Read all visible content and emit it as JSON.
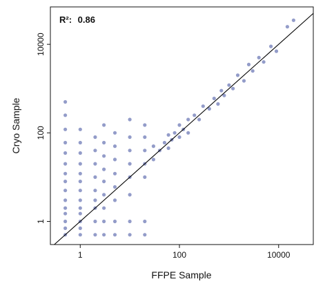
{
  "chart_data": {
    "type": "scatter",
    "title": "",
    "xlabel": "FFPE Sample",
    "ylabel": "Cryo Sample",
    "x_scale": "log10",
    "y_scale": "log10",
    "xlim": [
      0.25,
      50000
    ],
    "ylim": [
      0.3,
      70000
    ],
    "x_ticks": [
      1,
      100,
      10000
    ],
    "x_tick_labels": [
      "1",
      "100",
      "10000"
    ],
    "y_ticks": [
      1,
      100,
      10000
    ],
    "y_tick_labels": [
      "1",
      "100",
      "10000"
    ],
    "grid": false,
    "legend": "none",
    "annotation": {
      "label": "R²:",
      "value": "0.86"
    },
    "fit_line": {
      "slope_loglog": 1.0,
      "intercept_log10": 0.0
    },
    "point_color": "#3b4a9c",
    "line_color": "#000000",
    "series": [
      {
        "name": "",
        "points": [
          [
            0.5,
            0.5
          ],
          [
            0.5,
            0.7
          ],
          [
            0.5,
            1
          ],
          [
            0.5,
            1.5
          ],
          [
            0.5,
            2
          ],
          [
            0.5,
            3
          ],
          [
            0.5,
            5
          ],
          [
            0.5,
            8
          ],
          [
            0.5,
            12
          ],
          [
            0.5,
            20
          ],
          [
            0.5,
            35
          ],
          [
            0.5,
            60
          ],
          [
            0.5,
            120
          ],
          [
            0.5,
            250
          ],
          [
            0.5,
            500
          ],
          [
            1,
            0.5
          ],
          [
            1,
            0.7
          ],
          [
            1,
            1
          ],
          [
            1,
            1.5
          ],
          [
            1,
            2
          ],
          [
            1,
            3
          ],
          [
            1,
            5
          ],
          [
            1,
            8
          ],
          [
            1,
            12
          ],
          [
            1,
            20
          ],
          [
            1,
            35
          ],
          [
            1,
            60
          ],
          [
            1,
            120
          ],
          [
            2,
            0.5
          ],
          [
            2,
            1
          ],
          [
            2,
            2
          ],
          [
            2,
            3
          ],
          [
            2,
            5
          ],
          [
            2,
            10
          ],
          [
            2,
            20
          ],
          [
            2,
            40
          ],
          [
            2,
            80
          ],
          [
            3,
            0.5
          ],
          [
            3,
            1
          ],
          [
            3,
            2
          ],
          [
            3,
            4
          ],
          [
            3,
            8
          ],
          [
            3,
            15
          ],
          [
            3,
            30
          ],
          [
            3,
            60
          ],
          [
            3,
            150
          ],
          [
            5,
            0.5
          ],
          [
            5,
            1
          ],
          [
            5,
            3
          ],
          [
            5,
            6
          ],
          [
            5,
            12
          ],
          [
            5,
            25
          ],
          [
            5,
            50
          ],
          [
            5,
            100
          ],
          [
            10,
            0.5
          ],
          [
            10,
            1
          ],
          [
            10,
            4
          ],
          [
            10,
            10
          ],
          [
            10,
            20
          ],
          [
            10,
            40
          ],
          [
            10,
            80
          ],
          [
            10,
            200
          ],
          [
            20,
            0.5
          ],
          [
            20,
            1
          ],
          [
            20,
            10
          ],
          [
            20,
            20
          ],
          [
            20,
            40
          ],
          [
            20,
            80
          ],
          [
            20,
            150
          ],
          [
            30,
            25
          ],
          [
            30,
            50
          ],
          [
            40,
            40
          ],
          [
            50,
            60
          ],
          [
            60,
            45
          ],
          [
            60,
            90
          ],
          [
            70,
            70
          ],
          [
            80,
            100
          ],
          [
            100,
            80
          ],
          [
            100,
            150
          ],
          [
            120,
            120
          ],
          [
            150,
            200
          ],
          [
            150,
            100
          ],
          [
            200,
            250
          ],
          [
            250,
            200
          ],
          [
            300,
            400
          ],
          [
            400,
            350
          ],
          [
            500,
            600
          ],
          [
            600,
            450
          ],
          [
            700,
            900
          ],
          [
            800,
            700
          ],
          [
            1000,
            1200
          ],
          [
            1200,
            1000
          ],
          [
            1500,
            2000
          ],
          [
            2000,
            1500
          ],
          [
            2500,
            3500
          ],
          [
            3000,
            2500
          ],
          [
            4000,
            5000
          ],
          [
            5000,
            4000
          ],
          [
            7000,
            9000
          ],
          [
            9000,
            7000
          ],
          [
            15000,
            25000
          ],
          [
            20000,
            35000
          ]
        ]
      }
    ]
  }
}
